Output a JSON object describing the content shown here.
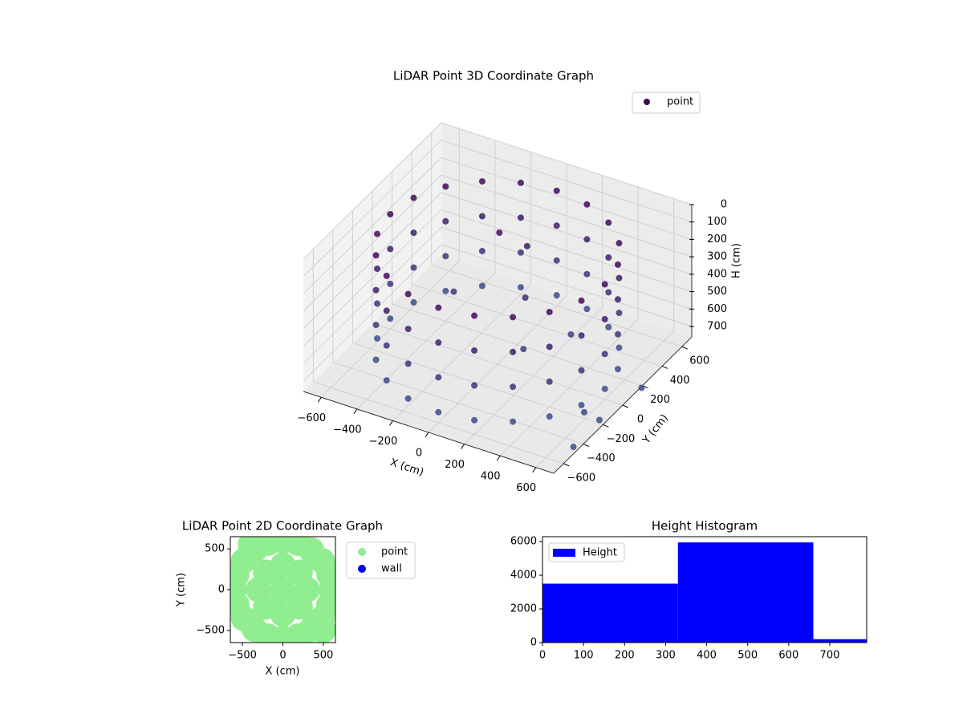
{
  "chart_data": [
    {
      "type": "scatter3d",
      "title": "LiDAR Point 3D Coordinate Graph",
      "xlabel": "X (cm)",
      "ylabel": "Y (cm)",
      "zlabel": "H (cm)",
      "series": [
        {
          "name": "point",
          "color": "#440154",
          "x": [
            600,
            571,
            485,
            353,
            185,
            0,
            -185,
            -353,
            -485,
            -571,
            -600,
            -571,
            -485,
            -353,
            -185,
            0,
            185,
            353,
            485,
            571,
            600,
            571,
            485,
            353,
            185,
            0,
            -185,
            -353,
            -485,
            -571,
            -600,
            -571,
            -485,
            -353,
            -185,
            0,
            185,
            353,
            485,
            571,
            600,
            571,
            485,
            353,
            185,
            0,
            -185,
            -353,
            -485,
            -571,
            -600,
            -571,
            -485,
            -353,
            -185,
            0,
            185,
            353,
            485,
            571,
            600,
            571,
            485,
            353,
            185,
            0,
            -185,
            -353,
            -485,
            -571,
            -600,
            -571,
            -485,
            -353,
            -185,
            0,
            185,
            353,
            485,
            571,
            -100,
            0,
            100,
            200,
            -300,
            300,
            650,
            700,
            750,
            680
          ],
          "y": [
            0,
            185,
            353,
            485,
            571,
            600,
            571,
            485,
            353,
            185,
            0,
            -185,
            -353,
            -485,
            -571,
            -600,
            -571,
            -485,
            -353,
            -185,
            0,
            185,
            353,
            485,
            571,
            600,
            571,
            485,
            353,
            185,
            0,
            -185,
            -353,
            -485,
            -571,
            -600,
            -571,
            -485,
            -353,
            -185,
            0,
            185,
            353,
            485,
            571,
            600,
            571,
            485,
            353,
            185,
            0,
            -185,
            -353,
            -485,
            -571,
            -600,
            -571,
            -485,
            -353,
            -185,
            0,
            185,
            353,
            485,
            571,
            600,
            571,
            485,
            353,
            185,
            0,
            -185,
            -353,
            -485,
            -571,
            -600,
            -571,
            -485,
            -353,
            -185,
            200,
            300,
            100,
            -100,
            100,
            200,
            -300,
            -500,
            100,
            -200
          ],
          "z": [
            100,
            100,
            100,
            100,
            100,
            100,
            100,
            100,
            100,
            100,
            100,
            100,
            100,
            100,
            100,
            100,
            100,
            100,
            100,
            100,
            300,
            300,
            300,
            300,
            300,
            300,
            300,
            300,
            300,
            300,
            300,
            300,
            300,
            300,
            300,
            300,
            300,
            300,
            300,
            300,
            500,
            500,
            500,
            500,
            500,
            500,
            500,
            500,
            500,
            500,
            500,
            500,
            500,
            500,
            500,
            500,
            500,
            500,
            500,
            500,
            700,
            700,
            700,
            700,
            700,
            700,
            700,
            700,
            700,
            700,
            700,
            700,
            700,
            700,
            700,
            700,
            700,
            700,
            700,
            700,
            150,
            250,
            400,
            550,
            500,
            600,
            650,
            720,
            700,
            740
          ]
        }
      ],
      "color_scale": [
        "#440154",
        "#3b528b"
      ],
      "xlim": [
        -700,
        700
      ],
      "ylim": [
        -700,
        700
      ],
      "zlim": [
        0,
        760
      ],
      "z_inverted": true,
      "xticks": [
        {
          "value": -600,
          "label": "−600"
        },
        {
          "value": -400,
          "label": "−400"
        },
        {
          "value": -200,
          "label": "−200"
        },
        0,
        200,
        400,
        600
      ],
      "yticks": [
        {
          "value": -600,
          "label": "−600"
        },
        {
          "value": -400,
          "label": "−400"
        },
        {
          "value": -200,
          "label": "−200"
        },
        0,
        200,
        400,
        600
      ],
      "zticks": [
        0,
        100,
        200,
        300,
        400,
        500,
        600,
        700
      ],
      "grid": true,
      "legend": "upper right"
    },
    {
      "type": "scatter",
      "title": "LiDAR Point 2D Coordinate Graph",
      "xlabel": "X (cm)",
      "ylabel": "Y (cm)",
      "series": [
        {
          "name": "point",
          "color": "#90ee90",
          "x": [
            600,
            571,
            485,
            353,
            185,
            0,
            -185,
            -353,
            -485,
            -571,
            -600,
            -571,
            -485,
            -353,
            -185,
            0,
            185,
            353,
            485,
            571,
            0,
            300,
            212,
            0,
            -212,
            -300,
            -212,
            0,
            212,
            -400,
            500
          ],
          "y": [
            0,
            185,
            353,
            485,
            571,
            600,
            571,
            485,
            353,
            185,
            0,
            -185,
            -353,
            -485,
            -571,
            -600,
            -571,
            -485,
            -353,
            -185,
            0,
            0,
            212,
            300,
            212,
            0,
            -212,
            -300,
            -212,
            550,
            -500
          ]
        },
        {
          "name": "wall",
          "color": "#0000ff",
          "x": [],
          "y": []
        }
      ],
      "xlim": [
        -650,
        650
      ],
      "ylim": [
        -650,
        650
      ],
      "xticks": [
        {
          "value": -500,
          "label": "−500"
        },
        0,
        500
      ],
      "yticks": [
        {
          "value": -500,
          "label": "−500"
        },
        0,
        500
      ],
      "legend": "outside right"
    },
    {
      "type": "histogram",
      "title": "Height Histogram",
      "series_name": "Height",
      "color": "#0000ff",
      "bins": [
        0,
        330,
        660,
        790
      ],
      "values": [
        3500,
        5950,
        200
      ],
      "xlim": [
        0,
        790
      ],
      "ylim": [
        0,
        6290
      ],
      "xticks": [
        0,
        100,
        200,
        300,
        400,
        500,
        600,
        700
      ],
      "yticks": [
        0,
        2000,
        4000,
        6000
      ],
      "legend": "upper left"
    }
  ]
}
